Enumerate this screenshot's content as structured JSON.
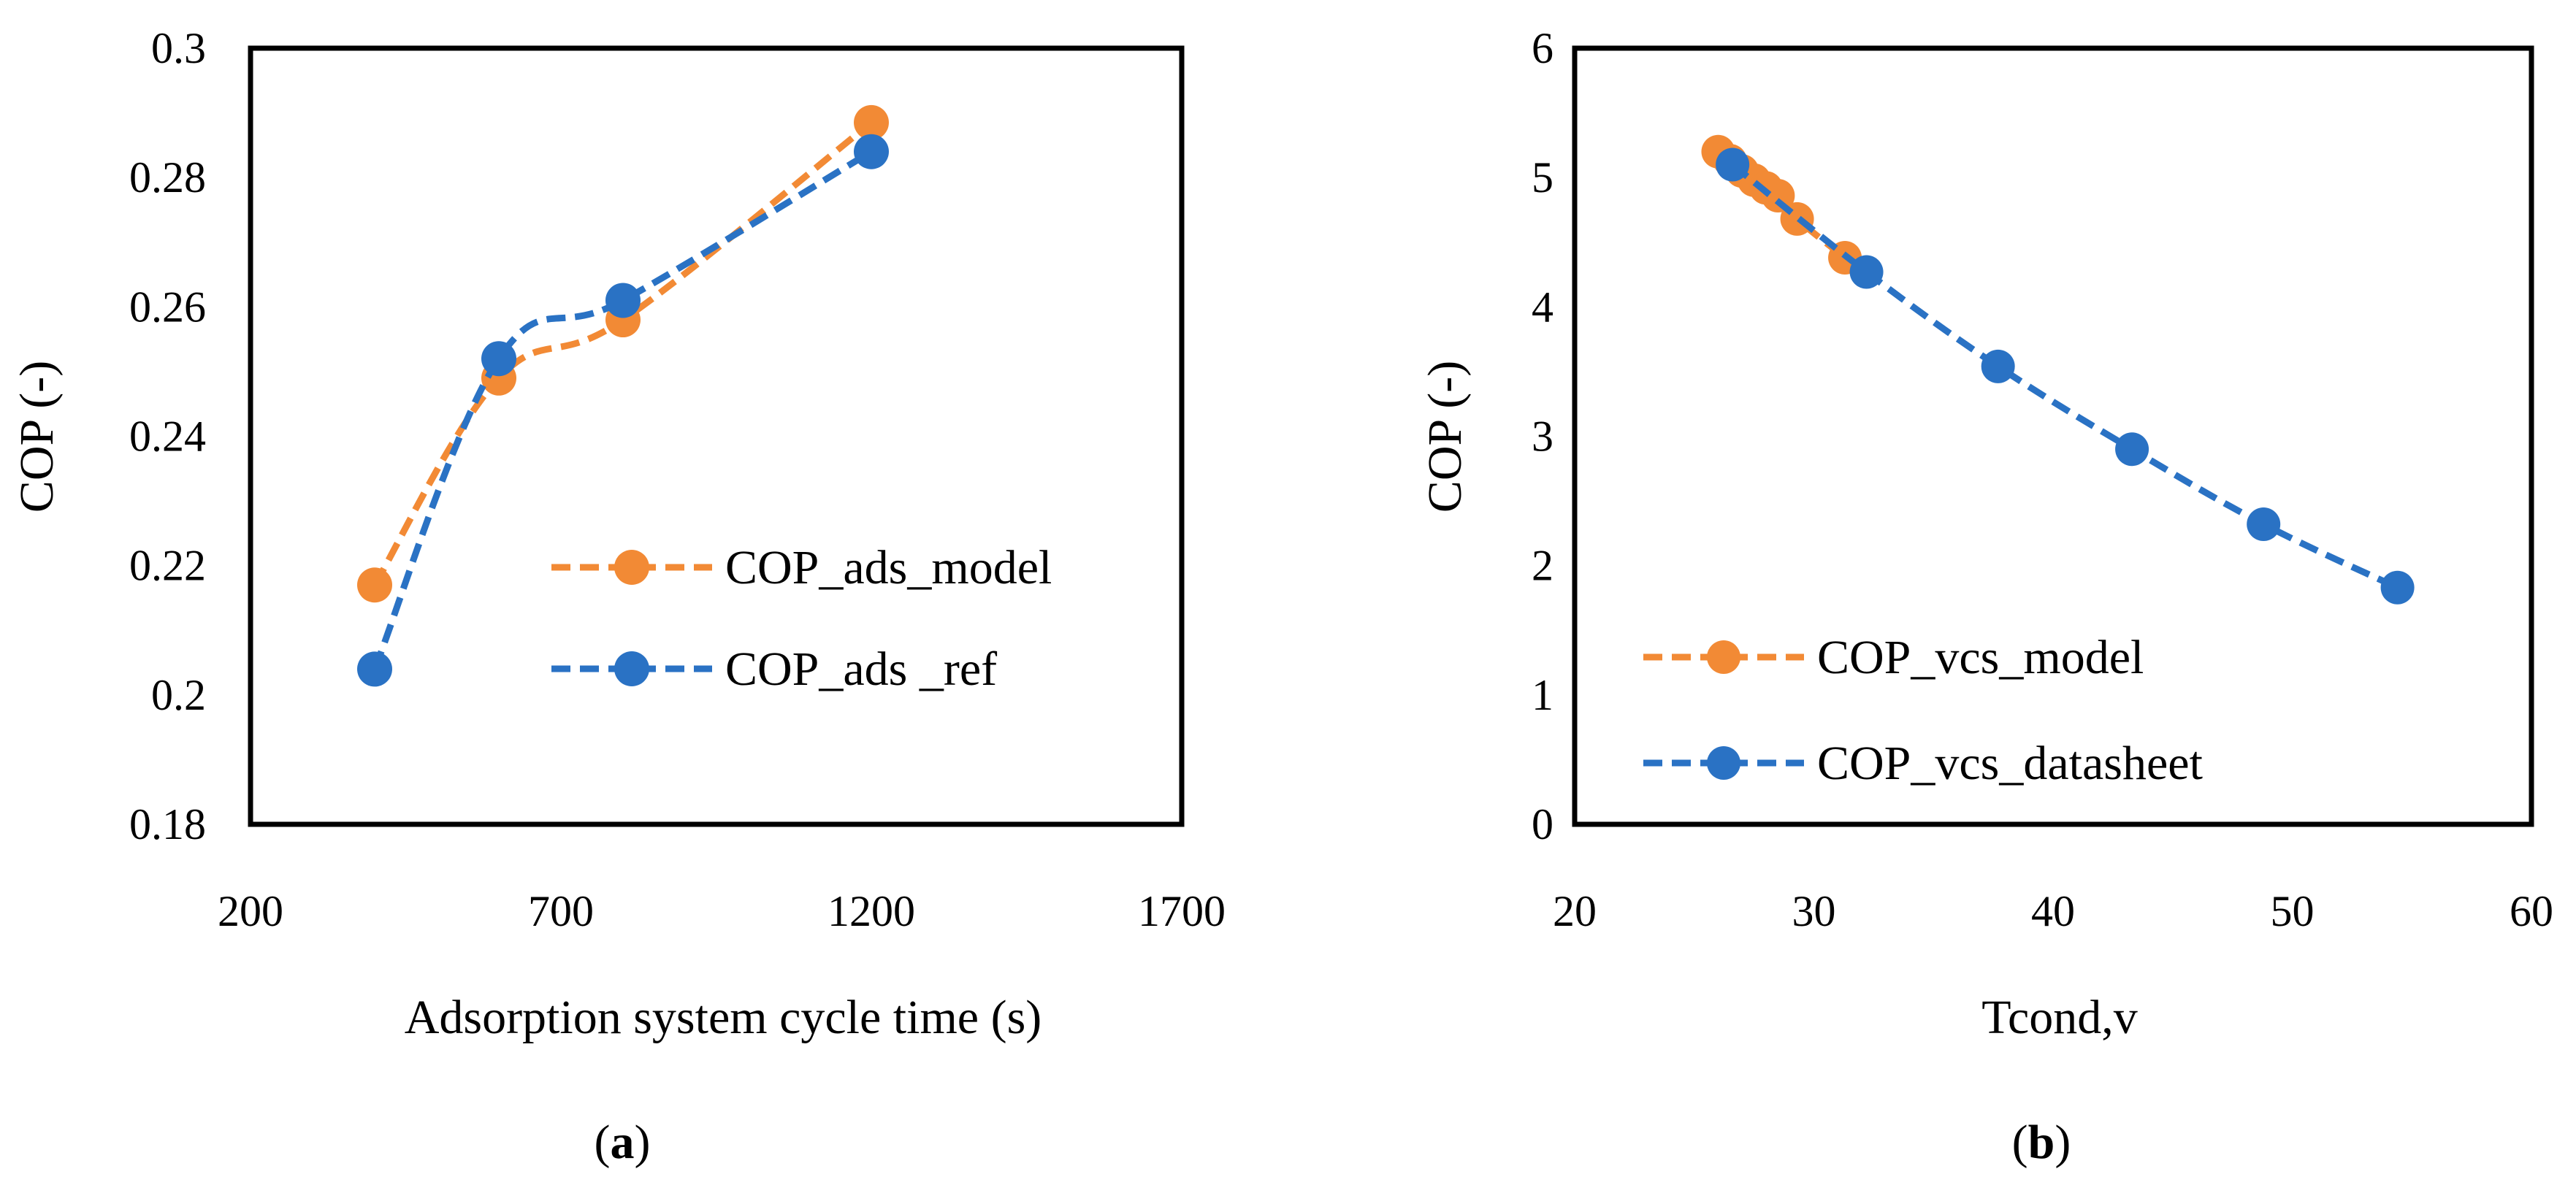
{
  "chart_data": [
    {
      "type": "line",
      "panel_label": "(a)",
      "panel_letter": "a",
      "xlabel": "Adsorption system cycle time (s)",
      "ylabel": "COP (-)",
      "xlim": [
        200,
        1700
      ],
      "ylim": [
        0.18,
        0.3
      ],
      "x_ticks": [
        "200",
        "700",
        "1200",
        "1700"
      ],
      "y_ticks": [
        "0.18",
        "0.2",
        "0.22",
        "0.24",
        "0.26",
        "0.28",
        "0.3"
      ],
      "grid": false,
      "legend_position": "center-right",
      "series": [
        {
          "name": "COP_ads_model",
          "color": "#f28a35",
          "x": [
            400,
            600,
            800,
            1200
          ],
          "y": [
            0.217,
            0.249,
            0.258,
            0.2885
          ]
        },
        {
          "name": "COP_ads _ref",
          "color": "#2a72c4",
          "x": [
            400,
            600,
            800,
            1200
          ],
          "y": [
            0.204,
            0.252,
            0.261,
            0.284
          ]
        }
      ]
    },
    {
      "type": "line",
      "panel_label": "(b)",
      "panel_letter": "b",
      "xlabel": "Tcond,v",
      "ylabel": "COP (-)",
      "xlim": [
        20,
        60
      ],
      "ylim": [
        0,
        6
      ],
      "x_ticks": [
        "20",
        "30",
        "40",
        "50",
        "60"
      ],
      "y_ticks": [
        "0",
        "1",
        "2",
        "3",
        "4",
        "5",
        "6"
      ],
      "grid": false,
      "legend_position": "bottom-left",
      "series": [
        {
          "name": "COP_vcs_model",
          "color": "#f28a35",
          "x": [
            26.0,
            26.5,
            27.0,
            27.5,
            28.0,
            28.5,
            29.3,
            31.3
          ],
          "y": [
            5.2,
            5.13,
            5.05,
            4.98,
            4.92,
            4.86,
            4.68,
            4.38
          ]
        },
        {
          "name": "COP_vcs_datasheet",
          "color": "#2a72c4",
          "x": [
            26.6,
            32.2,
            37.7,
            43.3,
            48.8,
            54.4
          ],
          "y": [
            5.1,
            4.27,
            3.54,
            2.9,
            2.32,
            1.83
          ]
        }
      ]
    }
  ]
}
